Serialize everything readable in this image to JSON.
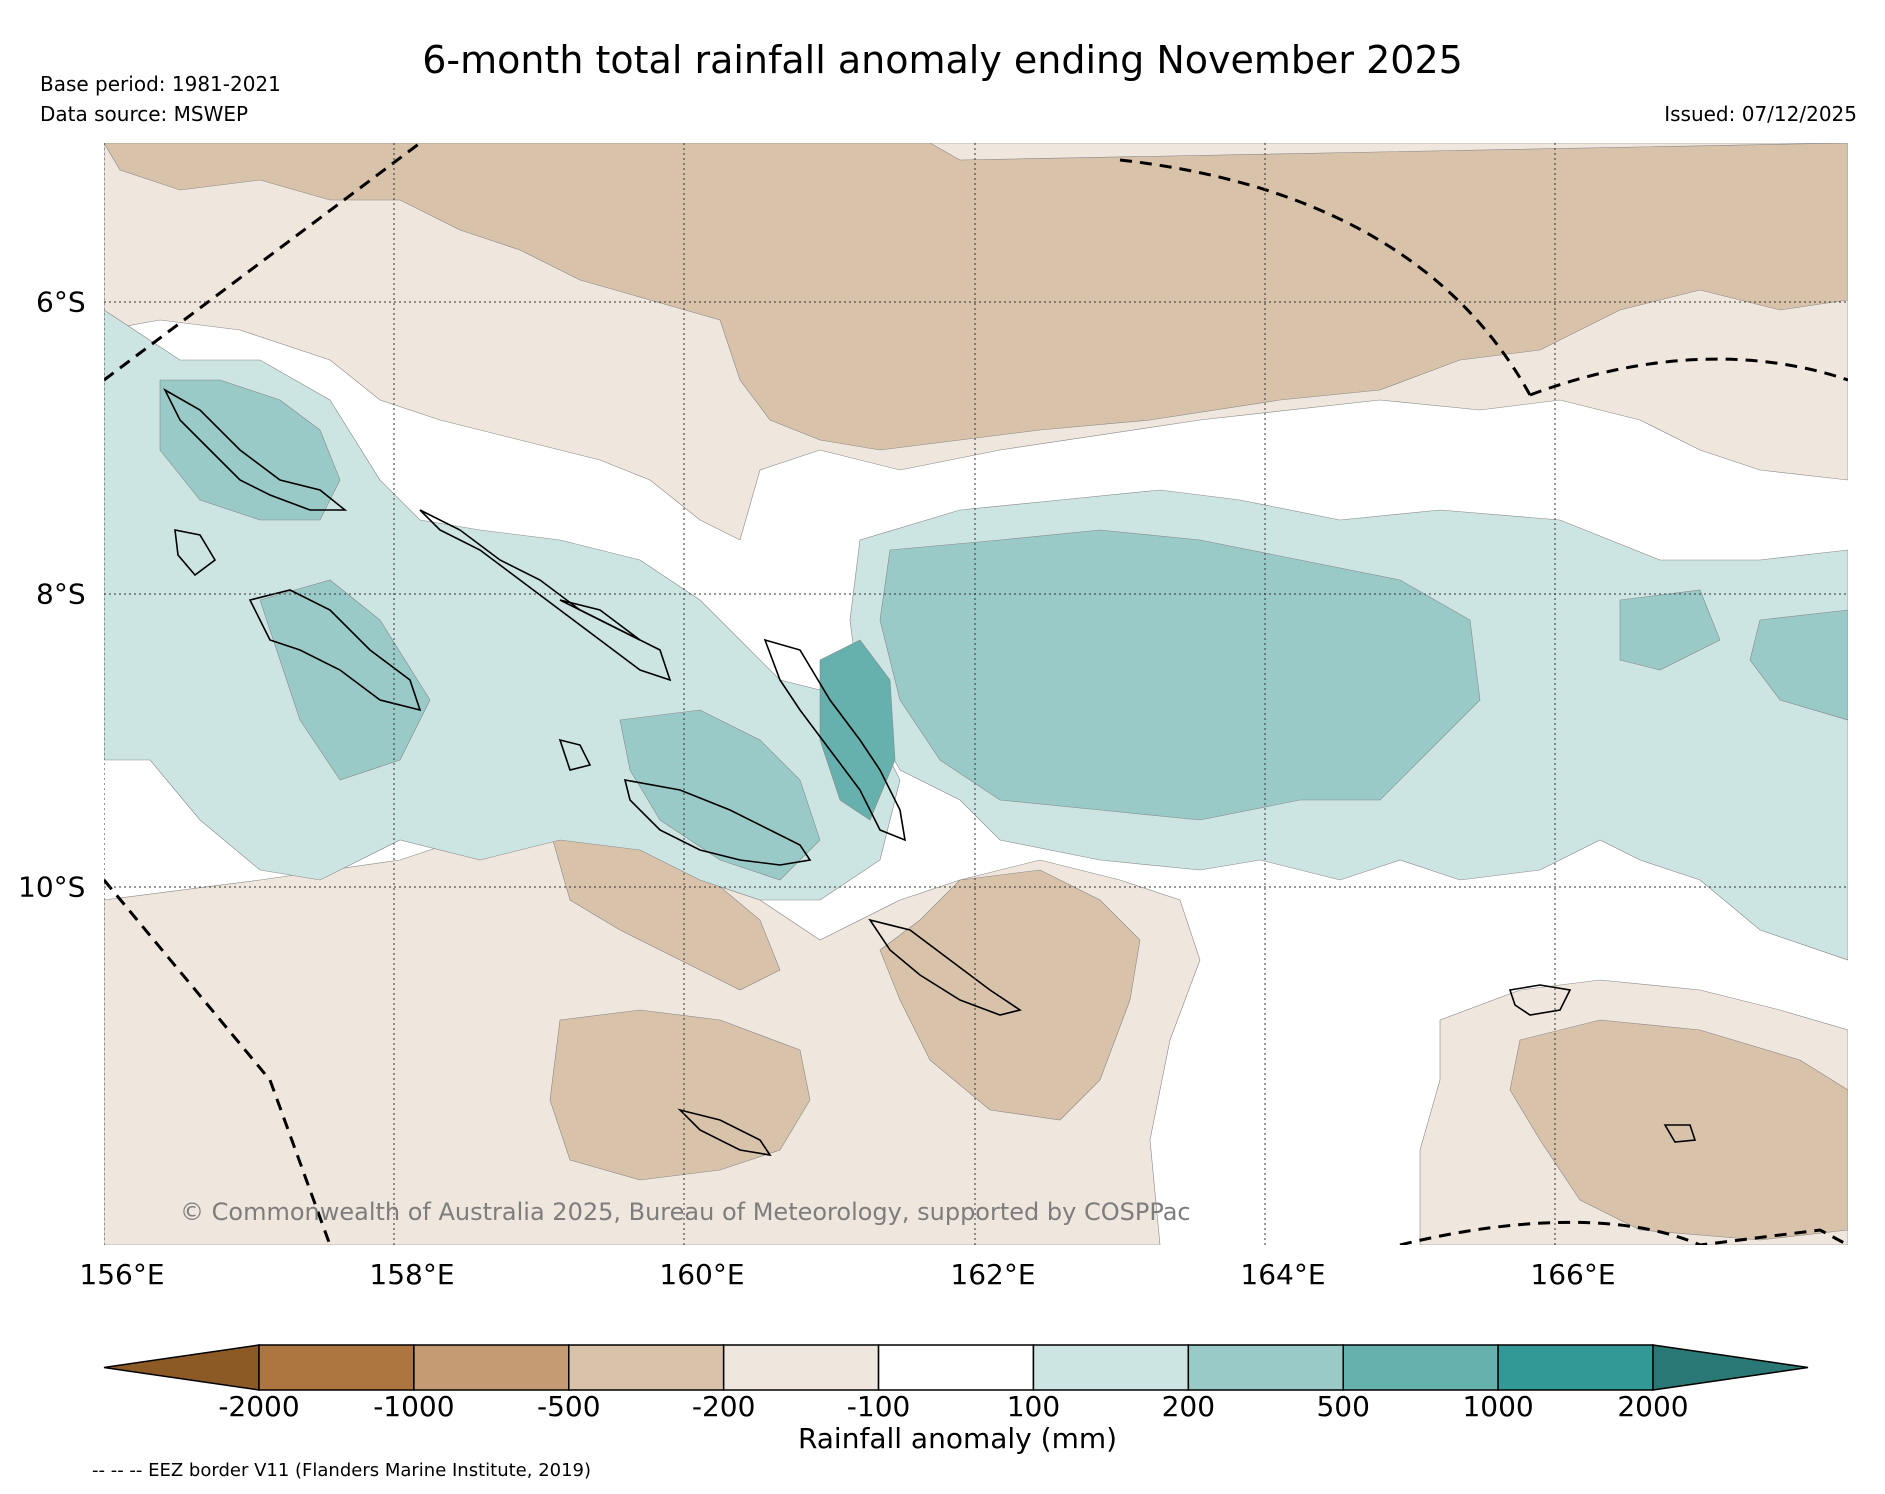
{
  "header": {
    "title": "6-month total rainfall anomaly ending November 2025",
    "base_period": "Base period: 1981-2021",
    "data_source": "Data source: MSWEP",
    "issued": "Issued: 07/12/2025"
  },
  "map": {
    "credit": "© Commonwealth of Australia 2025, Bureau of Meteorology, supported by COSPPac",
    "lon_labels": [
      "156°E",
      "158°E",
      "160°E",
      "162°E",
      "164°E",
      "166°E"
    ],
    "lat_labels": [
      "6°S",
      "8°S",
      "10°S"
    ]
  },
  "legend": {
    "title": "Rainfall anomaly (mm)",
    "ticks": [
      "-2000",
      "-1000",
      "-500",
      "-200",
      "-100",
      "100",
      "200",
      "500",
      "1000",
      "2000"
    ],
    "colors": [
      "#8c5a24",
      "#ad7640",
      "#c49b73",
      "#d9c2aa",
      "#efe6dd",
      "#ffffff",
      "#cce5e3",
      "#99cac8",
      "#66b0ad",
      "#339996",
      "#2a7875"
    ],
    "footnote": "-- -- -- EEZ border V11 (Flanders Marine Institute, 2019)"
  }
}
